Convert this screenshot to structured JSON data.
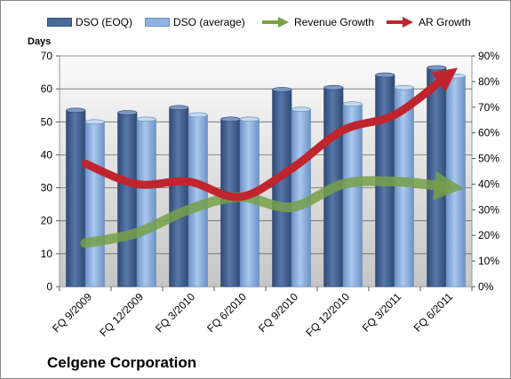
{
  "chart_data": {
    "type": "bar",
    "title": "Celgene Corporation",
    "ylabel": "Days",
    "categories": [
      "FQ 9/2009",
      "FQ 12/2009",
      "FQ 3/2010",
      "FQ 6/2010",
      "FQ 9/2010",
      "FQ 12/2010",
      "FQ 3/2011",
      "FQ 6/2011"
    ],
    "series": [
      {
        "name": "DSO (EOQ)",
        "type": "bar",
        "axis": "left",
        "color": "#4a6a9c",
        "values": [
          53.5,
          52.8,
          54.3,
          50.8,
          59.8,
          60.4,
          64.2,
          66.4
        ]
      },
      {
        "name": "DSO (average)",
        "type": "bar",
        "axis": "left",
        "color": "#8fb4e3",
        "values": [
          50.0,
          50.8,
          52.1,
          50.8,
          53.8,
          55.4,
          60.4,
          63.9
        ]
      },
      {
        "name": "Revenue Growth",
        "type": "line",
        "axis": "right",
        "color": "#77a04a",
        "values": [
          0.17,
          0.21,
          0.3,
          0.35,
          0.31,
          0.4,
          0.41,
          0.39
        ]
      },
      {
        "name": "AR Growth",
        "type": "line",
        "axis": "right",
        "color": "#c0242c",
        "values": [
          0.48,
          0.4,
          0.41,
          0.35,
          0.46,
          0.61,
          0.67,
          0.82
        ]
      }
    ],
    "ylim": [
      0,
      70
    ],
    "yticks": [
      "0",
      "10",
      "20",
      "30",
      "40",
      "50",
      "60",
      "70"
    ],
    "y2lim": [
      0,
      0.9
    ],
    "y2ticks": [
      "0%",
      "10%",
      "20%",
      "30%",
      "40%",
      "50%",
      "60%",
      "70%",
      "80%",
      "90%"
    ],
    "grid": true,
    "legend_position": "top"
  }
}
